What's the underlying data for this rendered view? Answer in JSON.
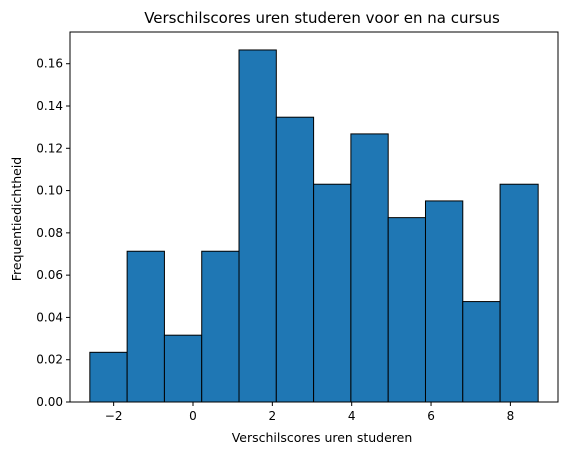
{
  "chart_data": {
    "type": "bar",
    "title": "Verschilscores uren studeren voor en na cursus",
    "xlabel": "Verschilscores uren studeren",
    "ylabel": "Frequentiedichtheid",
    "xlim": [
      -3.1,
      9.2
    ],
    "ylim": [
      0,
      0.175
    ],
    "grid": false,
    "bar_color": "#1f77b4",
    "edge_color": "#000000",
    "xticks": [
      -2,
      0,
      2,
      4,
      6,
      8
    ],
    "yticks": [
      0.0,
      0.02,
      0.04,
      0.06,
      0.08,
      0.1,
      0.12,
      0.14,
      0.16
    ],
    "xtick_labels": [
      "−2",
      "0",
      "2",
      "4",
      "6",
      "8"
    ],
    "ytick_labels": [
      "0.00",
      "0.02",
      "0.04",
      "0.06",
      "0.08",
      "0.10",
      "0.12",
      "0.14",
      "0.16"
    ],
    "bins": [
      {
        "start": -2.6,
        "end": -1.66,
        "value": 0.0235
      },
      {
        "start": -1.66,
        "end": -0.72,
        "value": 0.0713
      },
      {
        "start": -0.72,
        "end": 0.22,
        "value": 0.0316
      },
      {
        "start": 0.22,
        "end": 1.16,
        "value": 0.0713
      },
      {
        "start": 1.16,
        "end": 2.1,
        "value": 0.1665
      },
      {
        "start": 2.1,
        "end": 3.04,
        "value": 0.1347
      },
      {
        "start": 3.04,
        "end": 3.98,
        "value": 0.103
      },
      {
        "start": 3.98,
        "end": 4.92,
        "value": 0.1268
      },
      {
        "start": 4.92,
        "end": 5.86,
        "value": 0.0872
      },
      {
        "start": 5.86,
        "end": 6.8,
        "value": 0.0951
      },
      {
        "start": 6.8,
        "end": 7.74,
        "value": 0.0475
      },
      {
        "start": 7.74,
        "end": 8.7,
        "value": 0.103
      }
    ]
  }
}
